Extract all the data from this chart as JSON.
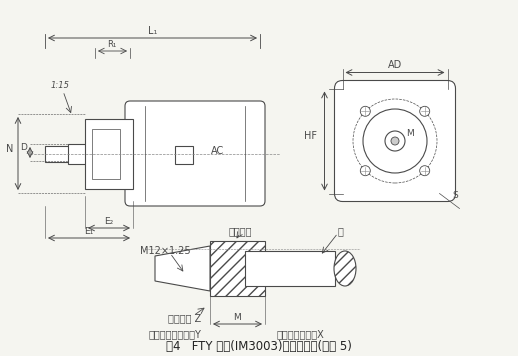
{
  "title": "图4   FTY 系列(IM3003)外形尺寸图(见表 5)",
  "background_color": "#f5f5f0",
  "line_color": "#4a4a4a",
  "hatch_color": "#4a4a4a",
  "labels": {
    "L1": "L₁",
    "R": "R₁",
    "taper": "1:15",
    "N": "N",
    "D": "D",
    "AC": "AC",
    "E2": "E₂",
    "E1": "E₁",
    "AD": "AD",
    "HF": "HF",
    "M_label": "M",
    "S": "S",
    "ring_gauge": "环形量规",
    "shaft": "轴",
    "M12": "M12×1.25",
    "cone_face_z": "锥体端面 Z",
    "plane_y": "未通过锥体的平面Y",
    "plane_x": "通过锥体的平面X",
    "M_dim": "M"
  }
}
